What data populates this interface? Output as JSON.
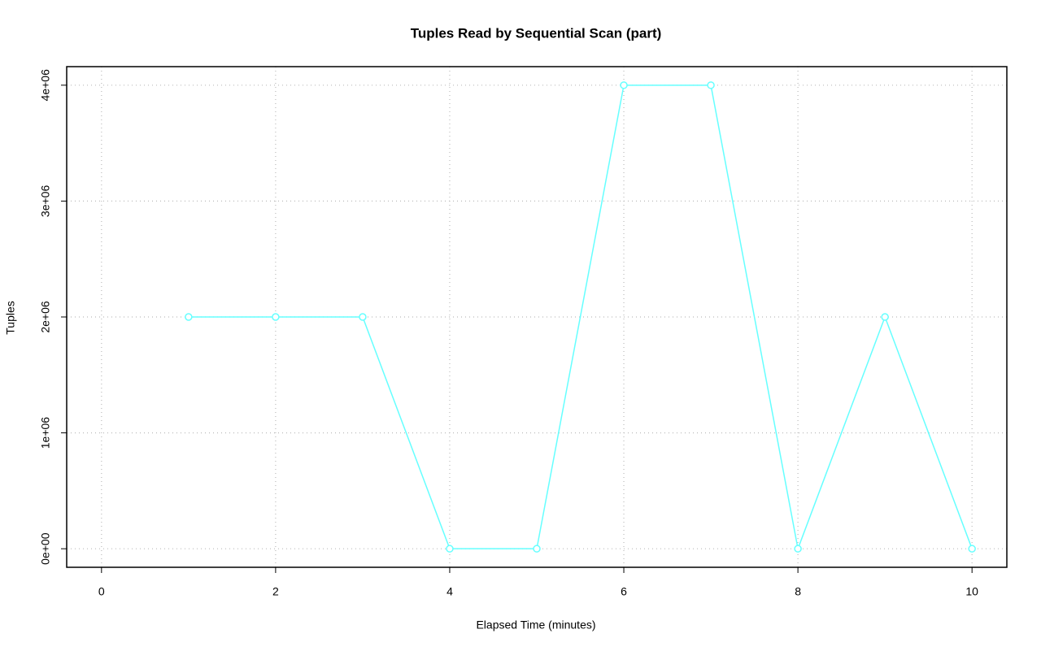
{
  "chart_data": {
    "type": "line",
    "title": "Tuples Read by Sequential Scan (part)",
    "xlabel": "Elapsed Time (minutes)",
    "ylabel": "Tuples",
    "x": [
      1,
      2,
      3,
      4,
      5,
      6,
      7,
      8,
      9,
      10
    ],
    "values": [
      2000000,
      2000000,
      2000000,
      0,
      0,
      4000000,
      4000000,
      0,
      2000000,
      0
    ],
    "color": "#66ffff",
    "xlim": [
      -0.4,
      10.4
    ],
    "xticks": [
      0,
      2,
      4,
      6,
      8,
      10
    ],
    "ylim": [
      -160000,
      4160000
    ],
    "yticks": [
      {
        "value": 0,
        "label": "0e+00"
      },
      {
        "value": 1000000,
        "label": "1e+06"
      },
      {
        "value": 2000000,
        "label": "2e+06"
      },
      {
        "value": 3000000,
        "label": "3e+06"
      },
      {
        "value": 4000000,
        "label": "4e+06"
      }
    ],
    "grid": true
  }
}
